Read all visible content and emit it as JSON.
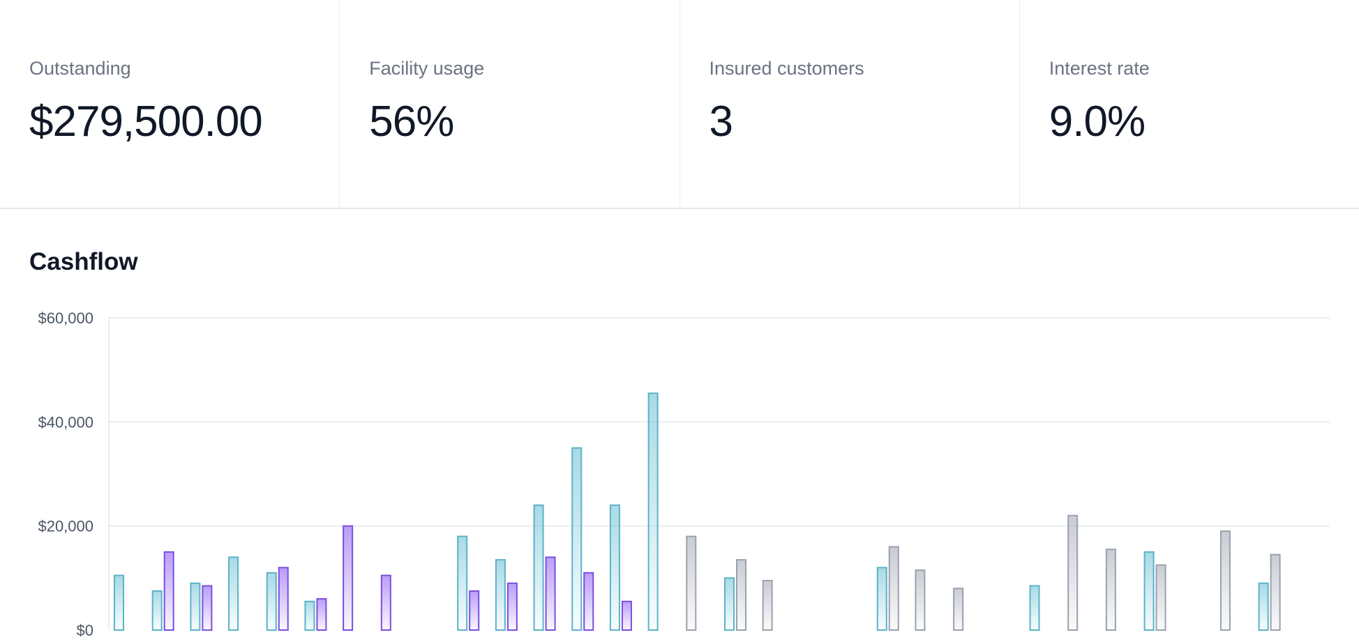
{
  "stats": [
    {
      "label": "Outstanding",
      "value": "$279,500.00"
    },
    {
      "label": "Facility usage",
      "value": "56%"
    },
    {
      "label": "Insured customers",
      "value": "3"
    },
    {
      "label": "Interest rate",
      "value": "9.0%"
    }
  ],
  "cashflow": {
    "title": "Cashflow"
  },
  "chart_data": {
    "type": "bar",
    "ylim": [
      0,
      60000
    ],
    "yticks": [
      "$0",
      "$20,000",
      "$40,000",
      "$60,000"
    ],
    "grid": true,
    "colors": {
      "teal": "#6ec1d4",
      "purple": "#8b5cf6",
      "gray": "#9ca3af"
    },
    "series": [
      {
        "color_key": "teal",
        "values": [
          10500,
          7500,
          9000,
          14000,
          11000,
          5500,
          0,
          0,
          0,
          18000,
          13500,
          24000,
          35000,
          24000,
          45500,
          0,
          10000,
          0,
          0,
          0,
          12000,
          0,
          0,
          0,
          8500,
          0,
          0,
          15000,
          0,
          0,
          9000,
          0
        ]
      },
      {
        "color_key": "purple",
        "values": [
          0,
          15000,
          8500,
          0,
          12000,
          6000,
          20000,
          10500,
          0,
          7500,
          9000,
          14000,
          11000,
          5500,
          0,
          0,
          0,
          0,
          0,
          0,
          0,
          0,
          0,
          0,
          0,
          0,
          0,
          0,
          0,
          0,
          0,
          0
        ]
      },
      {
        "color_key": "gray",
        "values": [
          0,
          0,
          0,
          0,
          0,
          0,
          0,
          0,
          0,
          0,
          0,
          0,
          0,
          0,
          0,
          18000,
          13500,
          9500,
          0,
          0,
          16000,
          11500,
          8000,
          0,
          0,
          22000,
          15500,
          12500,
          0,
          19000,
          14500,
          0
        ]
      }
    ]
  }
}
